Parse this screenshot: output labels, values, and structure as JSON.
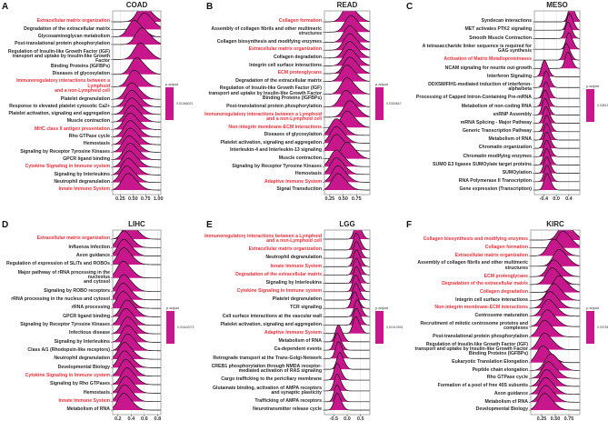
{
  "colors": {
    "fill": "#c8168d",
    "highlight": "#e8323c",
    "text": "#2a2a2a"
  },
  "chart_data": [
    {
      "type": "ridgeline",
      "letter": "A",
      "title": "COAD",
      "xlim": [
        0.1,
        1.05
      ],
      "x_ticks": [
        "0.25",
        "0.50",
        "0.75",
        "1.00"
      ],
      "x_tick_values": [
        0.25,
        0.5,
        0.75,
        1.0
      ],
      "spread": 0.11,
      "legend": {
        "title": "p.adjust",
        "value": "0.01066021"
      },
      "terms": [
        {
          "name": "Extracellular matrix organization",
          "highlighted": true,
          "peak": 0.68
        },
        {
          "name": "Degradation of the extracellular matrix",
          "highlighted": false,
          "peak": 0.7
        },
        {
          "name": "Glycosaminoglycan metabolism",
          "highlighted": false,
          "peak": 0.5
        },
        {
          "name": "Post-translational protein phosphorylation",
          "highlighted": false,
          "peak": 0.65
        },
        {
          "name": "Regulation of Insulin-like Growth Factor (IGF)\ntransport and uptake by Insulin-like Growth Factor\nBinding Proteins (IGFBPs)",
          "highlighted": false,
          "peak": 0.62
        },
        {
          "name": "Diseases of glycosylation",
          "highlighted": false,
          "peak": 0.55
        },
        {
          "name": "Immunoregulatory interactions between a Lymphoid\nand a non-Lymphoid cell",
          "highlighted": true,
          "peak": 0.5
        },
        {
          "name": "Platelet degranulation",
          "highlighted": false,
          "peak": 0.45
        },
        {
          "name": "Response to elevated platelet cytosolic Ca2+",
          "highlighted": false,
          "peak": 0.45
        },
        {
          "name": "Platelet activation, signaling and aggregation",
          "highlighted": false,
          "peak": 0.45
        },
        {
          "name": "Muscle contraction",
          "highlighted": false,
          "peak": 0.45
        },
        {
          "name": "MHC class II antigen presentation",
          "highlighted": true,
          "peak": 0.42
        },
        {
          "name": "Rho GTPase cycle",
          "highlighted": false,
          "peak": 0.42
        },
        {
          "name": "Hemostasis",
          "highlighted": false,
          "peak": 0.42
        },
        {
          "name": "Signaling by Receptor Tyrosine Kinases",
          "highlighted": false,
          "peak": 0.4
        },
        {
          "name": "GPCR ligand binding",
          "highlighted": false,
          "peak": 0.42
        },
        {
          "name": "Cytokine Signaling in Immune system",
          "highlighted": true,
          "peak": 0.4
        },
        {
          "name": "Signaling by Interleukins",
          "highlighted": false,
          "peak": 0.38
        },
        {
          "name": "Neutrophil degranulation",
          "highlighted": false,
          "peak": 0.35
        },
        {
          "name": "Innate Immune System",
          "highlighted": true,
          "peak": 0.38
        }
      ]
    },
    {
      "type": "ridgeline",
      "letter": "B",
      "title": "READ",
      "xlim": [
        0.15,
        1.0
      ],
      "x_ticks": [
        "0.25",
        "0.50",
        "0.75"
      ],
      "x_tick_values": [
        0.25,
        0.5,
        0.75
      ],
      "spread": 0.1,
      "legend": {
        "title": "p.adjust",
        "value": "0.0330647"
      },
      "terms": [
        {
          "name": "Collagen formation",
          "highlighted": true,
          "peak": 0.58
        },
        {
          "name": "Assembly of collagen fibrils and other multimeric\nstructures",
          "highlighted": false,
          "peak": 0.62
        },
        {
          "name": "Collagen biosynthesis and modifying enzymes",
          "highlighted": false,
          "peak": 0.6
        },
        {
          "name": "Extracellular matrix organization",
          "highlighted": true,
          "peak": 0.6
        },
        {
          "name": "Collagen degradation",
          "highlighted": false,
          "peak": 0.6
        },
        {
          "name": "Integrin cell surface interactions",
          "highlighted": false,
          "peak": 0.6
        },
        {
          "name": "ECM proteoglycans",
          "highlighted": true,
          "peak": 0.6
        },
        {
          "name": "Degradation of the extracellular matrix",
          "highlighted": false,
          "peak": 0.55
        },
        {
          "name": "Regulation of Insulin-like Growth Factor (IGF)\ntransport and uptake by Insulin-like Growth Factor\nBinding Proteins (IGFBPs)",
          "highlighted": false,
          "peak": 0.55
        },
        {
          "name": "Post-translational protein phosphorylation",
          "highlighted": false,
          "peak": 0.53
        },
        {
          "name": "Immunoregulatory interactions between a Lymphoid\nand a non-Lymphoid cell",
          "highlighted": true,
          "peak": 0.6
        },
        {
          "name": "Non-integrin membrane-ECM interactions",
          "highlighted": true,
          "peak": 0.55
        },
        {
          "name": "Diseases of glycosylation",
          "highlighted": false,
          "peak": 0.35
        },
        {
          "name": "Platelet activation, signaling and aggregation",
          "highlighted": false,
          "peak": 0.35
        },
        {
          "name": "Interleukin-4 and Interleukin-13 signaling",
          "highlighted": false,
          "peak": 0.35
        },
        {
          "name": "Muscle contraction",
          "highlighted": false,
          "peak": 0.55
        },
        {
          "name": "Signaling by Receptor Tyrosine Kinases",
          "highlighted": false,
          "peak": 0.35
        },
        {
          "name": "Hemostasis",
          "highlighted": false,
          "peak": 0.35
        },
        {
          "name": "Adaptive Immune System",
          "highlighted": true,
          "peak": 0.38
        },
        {
          "name": "Signal Transduction",
          "highlighted": false,
          "peak": 0.38
        }
      ]
    },
    {
      "type": "ridgeline",
      "letter": "C",
      "title": "MESO",
      "xlim": [
        -0.7,
        0.75
      ],
      "x_ticks": [
        "-0.4",
        "0.0",
        "0.4"
      ],
      "x_tick_values": [
        -0.4,
        0.0,
        0.4
      ],
      "spread": 0.08,
      "legend": {
        "title": "p.adjust",
        "value": "0.0361102"
      },
      "terms": [
        {
          "name": "Syndecan interactions",
          "highlighted": false,
          "peak": 0.45
        },
        {
          "name": "MET activates PTK2 signaling",
          "highlighted": false,
          "peak": 0.4
        },
        {
          "name": "Smooth Muscle Contraction",
          "highlighted": false,
          "peak": 0.35
        },
        {
          "name": "A tetrasaccharide linker sequence is required for\nGAG synthesis",
          "highlighted": false,
          "peak": 0.38
        },
        {
          "name": "Activation of Matrix Metalloproteinases",
          "highlighted": true,
          "peak": 0.3
        },
        {
          "name": "NCAM signaling for neurite out-growth",
          "highlighted": false,
          "peak": 0.35
        },
        {
          "name": "Interferon Signaling",
          "highlighted": false,
          "peak": -0.4
        },
        {
          "name": "DDX58/IFIH1-mediated induction of interferon-\nalpha/beta",
          "highlighted": false,
          "peak": -0.35
        },
        {
          "name": "Processing of Capped Intron-Containing Pre-mRNA",
          "highlighted": false,
          "peak": -0.35
        },
        {
          "name": "Metabolism of non-coding RNA",
          "highlighted": false,
          "peak": -0.38
        },
        {
          "name": "snRNP Assembly",
          "highlighted": false,
          "peak": -0.38
        },
        {
          "name": "mRNA Splicing - Major Pathway",
          "highlighted": false,
          "peak": -0.35
        },
        {
          "name": "Generic Transcription Pathway",
          "highlighted": false,
          "peak": -0.33
        },
        {
          "name": "Metabolism of RNA",
          "highlighted": false,
          "peak": -0.33
        },
        {
          "name": "Chromatin organization",
          "highlighted": false,
          "peak": -0.33
        },
        {
          "name": "Chromatin modifying enzymes",
          "highlighted": false,
          "peak": -0.33
        },
        {
          "name": "SUMO E3 ligases SUMOylate target proteins",
          "highlighted": false,
          "peak": -0.33
        },
        {
          "name": "SUMOylation",
          "highlighted": false,
          "peak": -0.33
        },
        {
          "name": "RNA Polymerase II Transcription",
          "highlighted": false,
          "peak": -0.32
        },
        {
          "name": "Gene expression (Transcription)",
          "highlighted": false,
          "peak": -0.32
        }
      ]
    },
    {
      "type": "ridgeline",
      "letter": "D",
      "title": "LIHC",
      "xlim": [
        0.12,
        0.85
      ],
      "x_ticks": [
        "0.2",
        "0.4",
        "0.6",
        "0.8"
      ],
      "x_tick_values": [
        0.2,
        0.4,
        0.6,
        0.8
      ],
      "spread": 0.08,
      "legend": {
        "title": "p.adjust",
        "value": "0.01642273"
      },
      "terms": [
        {
          "name": "Extracellular matrix organization",
          "highlighted": true,
          "peak": 0.35
        },
        {
          "name": "Influenza Infection",
          "highlighted": false,
          "peak": 0.27
        },
        {
          "name": "Axon guidance",
          "highlighted": false,
          "peak": 0.27
        },
        {
          "name": "Regulation of expression of SLITs and ROBOs",
          "highlighted": false,
          "peak": 0.27
        },
        {
          "name": "Major pathway of rRNA processing in the nucleolus\nand cytosol",
          "highlighted": false,
          "peak": 0.26
        },
        {
          "name": "Signaling by ROBO receptors",
          "highlighted": false,
          "peak": 0.27
        },
        {
          "name": "rRNA processing in the nucleus and cytosol",
          "highlighted": false,
          "peak": 0.26
        },
        {
          "name": "rRNA processing",
          "highlighted": false,
          "peak": 0.26
        },
        {
          "name": "GPCR ligand binding",
          "highlighted": false,
          "peak": 0.32
        },
        {
          "name": "Signaling by Receptor Tyrosine Kinases",
          "highlighted": false,
          "peak": 0.3
        },
        {
          "name": "Infectious disease",
          "highlighted": false,
          "peak": 0.33
        },
        {
          "name": "Signaling by Interleukins",
          "highlighted": false,
          "peak": 0.33
        },
        {
          "name": "Class A/1 (Rhodopsin-like receptors)",
          "highlighted": false,
          "peak": 0.33
        },
        {
          "name": "Neutrophil degranulation",
          "highlighted": false,
          "peak": 0.28
        },
        {
          "name": "Developmental Biology",
          "highlighted": false,
          "peak": 0.28
        },
        {
          "name": "Cytokine Signaling in Immune system",
          "highlighted": true,
          "peak": 0.3
        },
        {
          "name": "Signaling by Rho GTPases",
          "highlighted": false,
          "peak": 0.32
        },
        {
          "name": "Hemostasis",
          "highlighted": false,
          "peak": 0.3
        },
        {
          "name": "Innate Immune System",
          "highlighted": true,
          "peak": 0.28
        },
        {
          "name": "Metabolism of RNA",
          "highlighted": false,
          "peak": 0.27
        }
      ]
    },
    {
      "type": "ridgeline",
      "letter": "E",
      "title": "LGG",
      "xlim": [
        -0.85,
        0.85
      ],
      "x_ticks": [
        "-0.5",
        "0.0",
        "0.5"
      ],
      "x_tick_values": [
        -0.5,
        0.0,
        0.5
      ],
      "spread": 0.1,
      "legend": {
        "title": "p.adjust",
        "value": "0.01012991"
      },
      "terms": [
        {
          "name": "Immunoregulatory interactions between a Lymphoid\nand a non-Lymphoid cell",
          "highlighted": true,
          "peak": 0.35
        },
        {
          "name": "Extracellular matrix organization",
          "highlighted": true,
          "peak": 0.32
        },
        {
          "name": "Neutrophil degranulation",
          "highlighted": false,
          "peak": 0.32
        },
        {
          "name": "Innate Immune System",
          "highlighted": true,
          "peak": 0.32
        },
        {
          "name": "Degradation of the extracellular matrix",
          "highlighted": true,
          "peak": 0.32
        },
        {
          "name": "Signaling by Interleukins",
          "highlighted": false,
          "peak": 0.32
        },
        {
          "name": "Cytokine Signaling in Immune system",
          "highlighted": true,
          "peak": 0.3
        },
        {
          "name": "Platelet degranulation",
          "highlighted": false,
          "peak": 0.3
        },
        {
          "name": "TCR signaling",
          "highlighted": false,
          "peak": 0.25
        },
        {
          "name": "Cell surface interactions at the vascular wall",
          "highlighted": false,
          "peak": 0.35
        },
        {
          "name": "Platelet activation, signaling and aggregation",
          "highlighted": false,
          "peak": 0.32
        },
        {
          "name": "Adaptive Immune System",
          "highlighted": true,
          "peak": 0.3
        },
        {
          "name": "Metabolism of RNA",
          "highlighted": false,
          "peak": -0.35
        },
        {
          "name": "Ca-dependent events",
          "highlighted": false,
          "peak": -0.4
        },
        {
          "name": "Retrograde transport at the Trans-Golgi-Network",
          "highlighted": false,
          "peak": -0.35
        },
        {
          "name": "CREB1 phosphorylation through NMDA receptor-\nmediated activation of RAS signaling",
          "highlighted": false,
          "peak": -0.3
        },
        {
          "name": "Cargo trafficking to the periciliary membrane",
          "highlighted": false,
          "peak": -0.4
        },
        {
          "name": "Glutamate binding, activation of AMPA receptors\nand synaptic plasticity",
          "highlighted": false,
          "peak": -0.4
        },
        {
          "name": "Trafficking of AMPA receptors",
          "highlighted": false,
          "peak": -0.4
        },
        {
          "name": "Neurotransmitter release cycle",
          "highlighted": false,
          "peak": -0.4
        }
      ]
    },
    {
      "type": "ridgeline",
      "letter": "F",
      "title": "KIRC",
      "xlim": [
        0.05,
        0.95
      ],
      "x_ticks": [
        "0.25",
        "0.50",
        "0.75"
      ],
      "x_tick_values": [
        0.25,
        0.5,
        0.75
      ],
      "spread": 0.1,
      "legend": {
        "title": "p.adjust",
        "value": "0.0376646"
      },
      "terms": [
        {
          "name": "Collagen biosynthesis and modifying enzymes",
          "highlighted": true,
          "peak": 0.65
        },
        {
          "name": "Collagen formation",
          "highlighted": true,
          "peak": 0.62
        },
        {
          "name": "Extracellular matrix organization",
          "highlighted": true,
          "peak": 0.45
        },
        {
          "name": "Assembly of collagen fibrils and other multimeric\nstructures",
          "highlighted": false,
          "peak": 0.55
        },
        {
          "name": "ECM proteoglycans",
          "highlighted": true,
          "peak": 0.45
        },
        {
          "name": "Degradation of the extracellular matrix",
          "highlighted": true,
          "peak": 0.42
        },
        {
          "name": "Collagen degradation",
          "highlighted": true,
          "peak": 0.55
        },
        {
          "name": "Integrin cell surface interactions",
          "highlighted": false,
          "peak": 0.45
        },
        {
          "name": "Non-integrin membrane-ECM interactions",
          "highlighted": true,
          "peak": 0.38
        },
        {
          "name": "Centrosome maturation",
          "highlighted": false,
          "peak": 0.35
        },
        {
          "name": "Recruitment of mitotic centrosome proteins and\ncomplexes",
          "highlighted": false,
          "peak": 0.33
        },
        {
          "name": "Post-translational protein phosphorylation",
          "highlighted": false,
          "peak": 0.28
        },
        {
          "name": "Regulation of Insulin-like Growth Factor (IGF)\ntransport and uptake by Insulin-like Growth Factor\nBinding Proteins (IGFBPs)",
          "highlighted": false,
          "peak": 0.28
        },
        {
          "name": "Eukaryotic Translation Elongation",
          "highlighted": false,
          "peak": 0.25
        },
        {
          "name": "Peptide chain elongation",
          "highlighted": false,
          "peak": 0.4
        },
        {
          "name": "Rho GTPase cycle",
          "highlighted": false,
          "peak": 0.35
        },
        {
          "name": "Formation of a pool of free 40S subunits",
          "highlighted": false,
          "peak": 0.32
        },
        {
          "name": "Axon guidance",
          "highlighted": false,
          "peak": 0.3
        },
        {
          "name": "Metabolism of RNA",
          "highlighted": false,
          "peak": 0.3
        },
        {
          "name": "Developmental Biology",
          "highlighted": false,
          "peak": 0.28
        }
      ]
    }
  ]
}
